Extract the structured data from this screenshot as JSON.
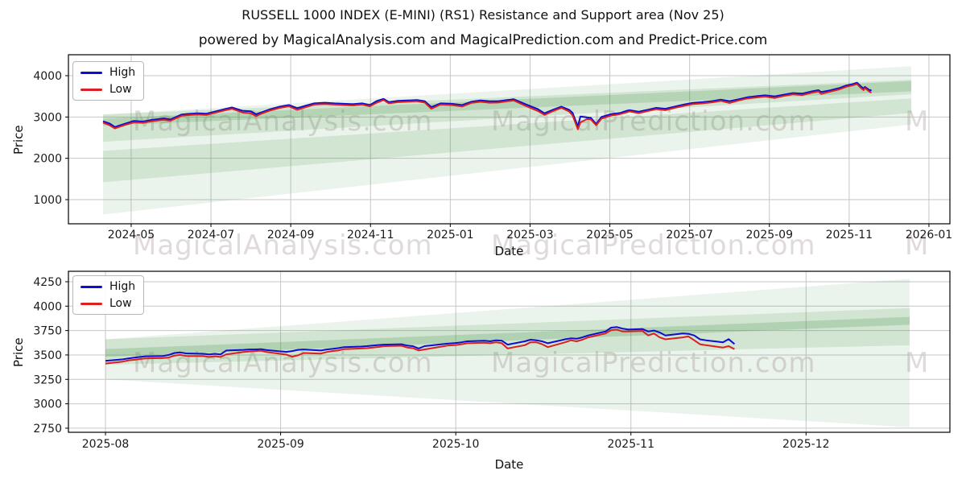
{
  "page": {
    "title": "RUSSELL 1000 INDEX (E-MINI) (RS1) Resistance and Support area (Nov 25)",
    "subtitle": "powered by MagicalAnalysis.com and MagicalPrediction.com and Predict-Price.com"
  },
  "watermarks": {
    "left_text": "MagicalAnalysis.com",
    "right_text": "MagicalPrediction.com",
    "partial_text": "M"
  },
  "chart_data": [
    {
      "type": "line",
      "name": "full-history",
      "xlabel": "Date",
      "ylabel": "Price",
      "legend": {
        "high": "High",
        "low": "Low"
      },
      "legend_position": "upper left",
      "grid": true,
      "xlim": [
        "2024-03-14",
        "2026-01-17"
      ],
      "ylim": [
        415,
        4507
      ],
      "xticks": [
        "2024-05",
        "2024-07",
        "2024-09",
        "2024-11",
        "2025-01",
        "2025-03",
        "2025-05",
        "2025-07",
        "2025-09",
        "2025-11",
        "2026-01"
      ],
      "yticks": [
        1000,
        2000,
        3000,
        4000
      ],
      "colors": {
        "high": "#0d0dd0",
        "low": "#dc1f1f",
        "band": "#3f9142",
        "grid": "#c6c6c6"
      },
      "bands": [
        {
          "from": "2024-04-10",
          "to": "2025-12-18",
          "top": [
            3060,
            4230
          ],
          "bottom": [
            640,
            2820
          ],
          "opacity": 0.1
        },
        {
          "from": "2024-04-10",
          "to": "2025-12-18",
          "top": [
            3060,
            3900
          ],
          "bottom": [
            2400,
            3550
          ],
          "opacity": 0.15
        },
        {
          "from": "2024-04-10",
          "to": "2025-12-18",
          "top": [
            2180,
            3450
          ],
          "bottom": [
            1420,
            3100
          ],
          "opacity": 0.15
        },
        {
          "from": "2024-04-10",
          "to": "2025-12-18",
          "top": [
            2960,
            3870
          ],
          "bottom": [
            2790,
            3620
          ],
          "opacity": 0.2
        }
      ],
      "points": [
        [
          "2024-04-10",
          2895,
          2865
        ],
        [
          "2024-04-15",
          2840,
          2800
        ],
        [
          "2024-04-19",
          2760,
          2725
        ],
        [
          "2024-04-26",
          2830,
          2800
        ],
        [
          "2024-05-03",
          2905,
          2870
        ],
        [
          "2024-05-10",
          2890,
          2860
        ],
        [
          "2024-05-17",
          2930,
          2900
        ],
        [
          "2024-05-26",
          2965,
          2935
        ],
        [
          "2024-05-31",
          2940,
          2910
        ],
        [
          "2024-06-09",
          3060,
          3030
        ],
        [
          "2024-06-14",
          3075,
          3045
        ],
        [
          "2024-06-21",
          3090,
          3060
        ],
        [
          "2024-06-28",
          3080,
          3050
        ],
        [
          "2024-07-05",
          3140,
          3110
        ],
        [
          "2024-07-12",
          3195,
          3165
        ],
        [
          "2024-07-17",
          3230,
          3200
        ],
        [
          "2024-07-25",
          3150,
          3110
        ],
        [
          "2024-08-01",
          3140,
          3090
        ],
        [
          "2024-08-05",
          3065,
          3020
        ],
        [
          "2024-08-09",
          3110,
          3080
        ],
        [
          "2024-08-16",
          3190,
          3160
        ],
        [
          "2024-08-23",
          3250,
          3220
        ],
        [
          "2024-08-30",
          3290,
          3260
        ],
        [
          "2024-09-06",
          3215,
          3175
        ],
        [
          "2024-09-13",
          3280,
          3245
        ],
        [
          "2024-09-19",
          3330,
          3300
        ],
        [
          "2024-09-27",
          3345,
          3315
        ],
        [
          "2024-10-04",
          3330,
          3300
        ],
        [
          "2024-10-11",
          3320,
          3290
        ],
        [
          "2024-10-18",
          3310,
          3280
        ],
        [
          "2024-10-25",
          3330,
          3300
        ],
        [
          "2024-10-31",
          3290,
          3260
        ],
        [
          "2024-11-06",
          3390,
          3350
        ],
        [
          "2024-11-11",
          3440,
          3410
        ],
        [
          "2024-11-15",
          3360,
          3330
        ],
        [
          "2024-11-22",
          3390,
          3360
        ],
        [
          "2024-11-29",
          3400,
          3370
        ],
        [
          "2024-12-06",
          3410,
          3380
        ],
        [
          "2024-12-12",
          3380,
          3350
        ],
        [
          "2024-12-17",
          3240,
          3200
        ],
        [
          "2024-12-24",
          3330,
          3300
        ],
        [
          "2025-01-02",
          3320,
          3290
        ],
        [
          "2025-01-10",
          3290,
          3255
        ],
        [
          "2025-01-17",
          3370,
          3340
        ],
        [
          "2025-01-24",
          3400,
          3370
        ],
        [
          "2025-01-31",
          3380,
          3345
        ],
        [
          "2025-02-07",
          3380,
          3350
        ],
        [
          "2025-02-14",
          3410,
          3380
        ],
        [
          "2025-02-19",
          3430,
          3400
        ],
        [
          "2025-02-28",
          3310,
          3270
        ],
        [
          "2025-03-07",
          3190,
          3145
        ],
        [
          "2025-03-12",
          3090,
          3050
        ],
        [
          "2025-03-19",
          3180,
          3150
        ],
        [
          "2025-03-25",
          3250,
          3220
        ],
        [
          "2025-03-31",
          3170,
          3130
        ],
        [
          "2025-04-03",
          3100,
          3040
        ],
        [
          "2025-04-07",
          2770,
          2700
        ],
        [
          "2025-04-09",
          3010,
          2870
        ],
        [
          "2025-04-14",
          2990,
          2950
        ],
        [
          "2025-04-17",
          2980,
          2940
        ],
        [
          "2025-04-21",
          2830,
          2800
        ],
        [
          "2025-04-25",
          3000,
          2960
        ],
        [
          "2025-05-02",
          3070,
          3035
        ],
        [
          "2025-05-09",
          3100,
          3070
        ],
        [
          "2025-05-14",
          3150,
          3115
        ],
        [
          "2025-05-16",
          3165,
          3135
        ],
        [
          "2025-05-23",
          3130,
          3095
        ],
        [
          "2025-05-30",
          3175,
          3145
        ],
        [
          "2025-06-06",
          3220,
          3190
        ],
        [
          "2025-06-13",
          3200,
          3165
        ],
        [
          "2025-06-20",
          3250,
          3220
        ],
        [
          "2025-06-27",
          3300,
          3270
        ],
        [
          "2025-07-03",
          3340,
          3310
        ],
        [
          "2025-07-11",
          3360,
          3330
        ],
        [
          "2025-07-18",
          3385,
          3355
        ],
        [
          "2025-07-25",
          3420,
          3390
        ],
        [
          "2025-08-01",
          3385,
          3340
        ],
        [
          "2025-08-08",
          3430,
          3400
        ],
        [
          "2025-08-15",
          3480,
          3450
        ],
        [
          "2025-08-22",
          3505,
          3475
        ],
        [
          "2025-08-28",
          3525,
          3495
        ],
        [
          "2025-09-05",
          3500,
          3460
        ],
        [
          "2025-09-12",
          3540,
          3510
        ],
        [
          "2025-09-19",
          3580,
          3550
        ],
        [
          "2025-09-26",
          3565,
          3530
        ],
        [
          "2025-10-03",
          3620,
          3590
        ],
        [
          "2025-10-08",
          3650,
          3620
        ],
        [
          "2025-10-10",
          3605,
          3560
        ],
        [
          "2025-10-17",
          3645,
          3615
        ],
        [
          "2025-10-24",
          3700,
          3670
        ],
        [
          "2025-10-29",
          3760,
          3730
        ],
        [
          "2025-11-04",
          3800,
          3770
        ],
        [
          "2025-11-07",
          3830,
          3800
        ],
        [
          "2025-11-10",
          3740,
          3700
        ],
        [
          "2025-11-12",
          3690,
          3650
        ],
        [
          "2025-11-13",
          3730,
          3700
        ],
        [
          "2025-11-17",
          3640,
          3600
        ],
        [
          "2025-11-18",
          3660,
          3590
        ]
      ]
    },
    {
      "type": "line",
      "name": "recent-detail",
      "xlabel": "Date",
      "ylabel": "Price",
      "legend": {
        "high": "High",
        "low": "Low"
      },
      "legend_position": "upper left",
      "grid": true,
      "xlim": [
        "2025-07-25",
        "2025-12-26"
      ],
      "ylim": [
        2708,
        4357
      ],
      "xticks": [
        "2025-08",
        "2025-09",
        "2025-10",
        "2025-11",
        "2025-12"
      ],
      "yticks": [
        2750,
        3000,
        3250,
        3500,
        3750,
        4000,
        4250
      ],
      "colors": {
        "high": "#0d0dd0",
        "low": "#dc1f1f",
        "band": "#3f9142",
        "grid": "#c6c6c6"
      },
      "bands": [
        {
          "from": "2025-08-01",
          "to": "2025-12-19",
          "top": [
            3660,
            4280
          ],
          "bottom": [
            3250,
            2760
          ],
          "opacity": 0.1
        },
        {
          "from": "2025-08-01",
          "to": "2025-12-19",
          "top": [
            3660,
            3980
          ],
          "bottom": [
            3400,
            3600
          ],
          "opacity": 0.15
        },
        {
          "from": "2025-08-01",
          "to": "2025-12-19",
          "top": [
            3560,
            3890
          ],
          "bottom": [
            3480,
            3810
          ],
          "opacity": 0.22
        }
      ],
      "points": [
        [
          "2025-08-01",
          3440,
          3412
        ],
        [
          "2025-08-04",
          3455,
          3432
        ],
        [
          "2025-08-05",
          3465,
          3445
        ],
        [
          "2025-08-06",
          3472,
          3450
        ],
        [
          "2025-08-07",
          3480,
          3458
        ],
        [
          "2025-08-08",
          3486,
          3464
        ],
        [
          "2025-08-11",
          3490,
          3468
        ],
        [
          "2025-08-12",
          3500,
          3474
        ],
        [
          "2025-08-13",
          3520,
          3494
        ],
        [
          "2025-08-14",
          3526,
          3500
        ],
        [
          "2025-08-15",
          3516,
          3490
        ],
        [
          "2025-08-18",
          3512,
          3488
        ],
        [
          "2025-08-19",
          3506,
          3480
        ],
        [
          "2025-08-20",
          3512,
          3486
        ],
        [
          "2025-08-21",
          3506,
          3480
        ],
        [
          "2025-08-22",
          3546,
          3506
        ],
        [
          "2025-08-25",
          3552,
          3530
        ],
        [
          "2025-08-26",
          3556,
          3536
        ],
        [
          "2025-08-27",
          3556,
          3540
        ],
        [
          "2025-08-28",
          3560,
          3544
        ],
        [
          "2025-08-29",
          3550,
          3530
        ],
        [
          "2025-09-02",
          3532,
          3504
        ],
        [
          "2025-09-03",
          3540,
          3482
        ],
        [
          "2025-09-04",
          3552,
          3496
        ],
        [
          "2025-09-05",
          3556,
          3520
        ],
        [
          "2025-09-08",
          3546,
          3514
        ],
        [
          "2025-09-09",
          3556,
          3530
        ],
        [
          "2025-09-10",
          3562,
          3540
        ],
        [
          "2025-09-11",
          3570,
          3546
        ],
        [
          "2025-09-12",
          3580,
          3560
        ],
        [
          "2025-09-15",
          3586,
          3566
        ],
        [
          "2025-09-16",
          3590,
          3570
        ],
        [
          "2025-09-17",
          3596,
          3576
        ],
        [
          "2025-09-18",
          3602,
          3582
        ],
        [
          "2025-09-19",
          3606,
          3590
        ],
        [
          "2025-09-22",
          3610,
          3594
        ],
        [
          "2025-09-23",
          3596,
          3576
        ],
        [
          "2025-09-24",
          3590,
          3570
        ],
        [
          "2025-09-25",
          3566,
          3546
        ],
        [
          "2025-09-26",
          3590,
          3556
        ],
        [
          "2025-09-29",
          3610,
          3586
        ],
        [
          "2025-09-30",
          3616,
          3596
        ],
        [
          "2025-10-01",
          3622,
          3602
        ],
        [
          "2025-10-02",
          3630,
          3610
        ],
        [
          "2025-10-03",
          3640,
          3620
        ],
        [
          "2025-10-06",
          3646,
          3626
        ],
        [
          "2025-10-07",
          3640,
          3620
        ],
        [
          "2025-10-08",
          3650,
          3630
        ],
        [
          "2025-10-09",
          3646,
          3620
        ],
        [
          "2025-10-10",
          3606,
          3566
        ],
        [
          "2025-10-13",
          3640,
          3600
        ],
        [
          "2025-10-14",
          3656,
          3630
        ],
        [
          "2025-10-15",
          3650,
          3630
        ],
        [
          "2025-10-16",
          3640,
          3610
        ],
        [
          "2025-10-17",
          3620,
          3580
        ],
        [
          "2025-10-20",
          3660,
          3630
        ],
        [
          "2025-10-21",
          3670,
          3650
        ],
        [
          "2025-10-22",
          3666,
          3640
        ],
        [
          "2025-10-23",
          3680,
          3656
        ],
        [
          "2025-10-24",
          3700,
          3680
        ],
        [
          "2025-10-27",
          3740,
          3720
        ],
        [
          "2025-10-28",
          3780,
          3754
        ],
        [
          "2025-10-29",
          3786,
          3760
        ],
        [
          "2025-10-30",
          3770,
          3740
        ],
        [
          "2025-10-31",
          3760,
          3740
        ],
        [
          "2025-11-03",
          3766,
          3746
        ],
        [
          "2025-11-04",
          3740,
          3700
        ],
        [
          "2025-11-05",
          3750,
          3720
        ],
        [
          "2025-11-06",
          3730,
          3680
        ],
        [
          "2025-11-07",
          3700,
          3660
        ],
        [
          "2025-11-10",
          3720,
          3680
        ],
        [
          "2025-11-11",
          3716,
          3690
        ],
        [
          "2025-11-12",
          3700,
          3650
        ],
        [
          "2025-11-13",
          3660,
          3610
        ],
        [
          "2025-11-14",
          3650,
          3600
        ],
        [
          "2025-11-17",
          3630,
          3576
        ],
        [
          "2025-11-18",
          3662,
          3590
        ],
        [
          "2025-11-19",
          3612,
          3560
        ]
      ]
    }
  ]
}
